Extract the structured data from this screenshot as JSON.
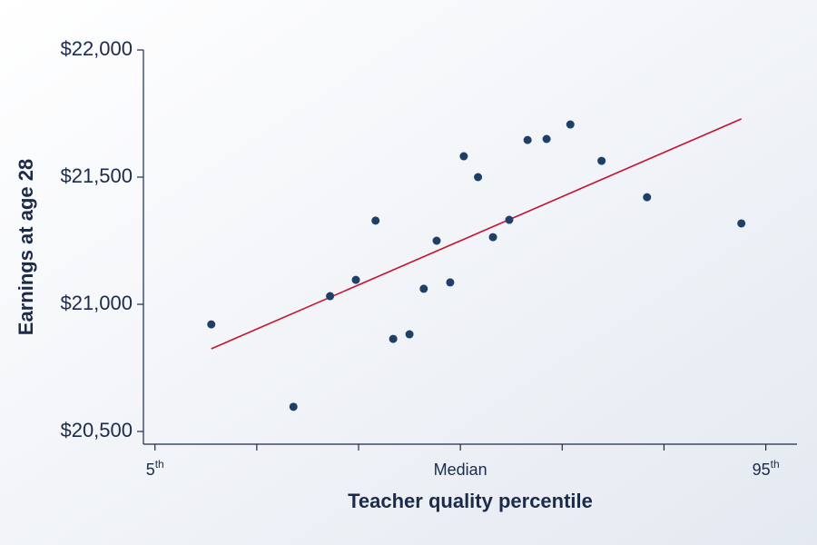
{
  "chart_data": {
    "type": "scatter",
    "x_label": "Teacher quality percentile",
    "y_label": "Earnings at age 28",
    "x": [
      13.3,
      25.4,
      30.8,
      34.6,
      37.5,
      40.1,
      42.5,
      44.6,
      46.5,
      48.5,
      50.5,
      52.6,
      54.8,
      57.2,
      59.9,
      62.7,
      66.2,
      70.8,
      77.5,
      91.4
    ],
    "y": [
      20921,
      20597,
      21032,
      21096,
      21329,
      20864,
      20882,
      21061,
      21250,
      21086,
      21582,
      21500,
      21264,
      21332,
      21646,
      21650,
      21707,
      21564,
      21421,
      21318
    ],
    "color": "#1f3f66",
    "trendline": {
      "x": [
        13.3,
        91.4
      ],
      "y": [
        20825,
        21729
      ],
      "color": "#c8102e"
    },
    "xlim": [
      3.3,
      99.6
    ],
    "ylim": [
      20450,
      22000
    ],
    "xticks": [
      {
        "value": 5,
        "label": "5th"
      },
      {
        "value": 20,
        "label": null
      },
      {
        "value": 35,
        "label": null
      },
      {
        "value": 50,
        "label": "Median"
      },
      {
        "value": 65,
        "label": null
      },
      {
        "value": 80,
        "label": null
      },
      {
        "value": 95,
        "label": "95th"
      }
    ],
    "yticks": [
      {
        "value": 20500,
        "label": "$20,500"
      },
      {
        "value": 21000,
        "label": "$21,000"
      },
      {
        "value": 21500,
        "label": "$21,500"
      },
      {
        "value": 22000,
        "label": "$22,000"
      }
    ],
    "grid": false
  }
}
